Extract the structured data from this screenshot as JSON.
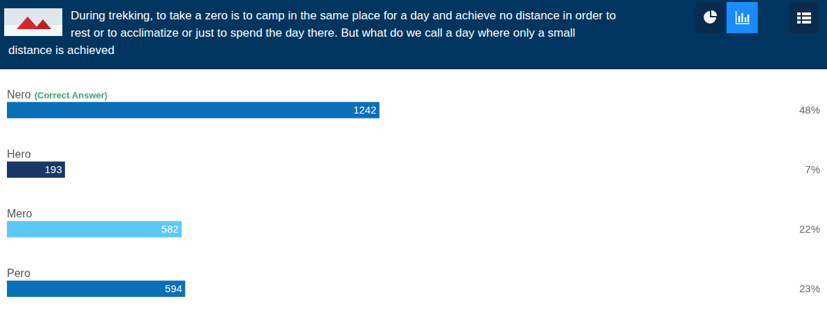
{
  "chart_data": {
    "type": "bar",
    "orientation": "horizontal",
    "title": "During trekking, to take a zero is to camp in the same place for a day and achieve no distance in order to rest or to acclimatize or just to spend the day there. But what do we call a day where only a small distance is achieved",
    "categories": [
      "Nero",
      "Hero",
      "Mero",
      "Pero"
    ],
    "values": [
      1242,
      193,
      582,
      594
    ],
    "percentages": [
      {
        "value": 48,
        "label": "48%"
      },
      {
        "value": 7,
        "label": "7%"
      },
      {
        "value": 22,
        "label": "22%"
      },
      {
        "value": 23,
        "label": "23%"
      }
    ],
    "annotations": [
      {
        "category": "Nero",
        "text": "(Correct Answer)"
      }
    ],
    "colors": [
      "#0b6fb8",
      "#1b3768",
      "#5cc9f5",
      "#0b6fb8"
    ],
    "xlim": [
      0,
      2611
    ],
    "data_labels": true,
    "tick_labels": false,
    "grid": false
  }
}
